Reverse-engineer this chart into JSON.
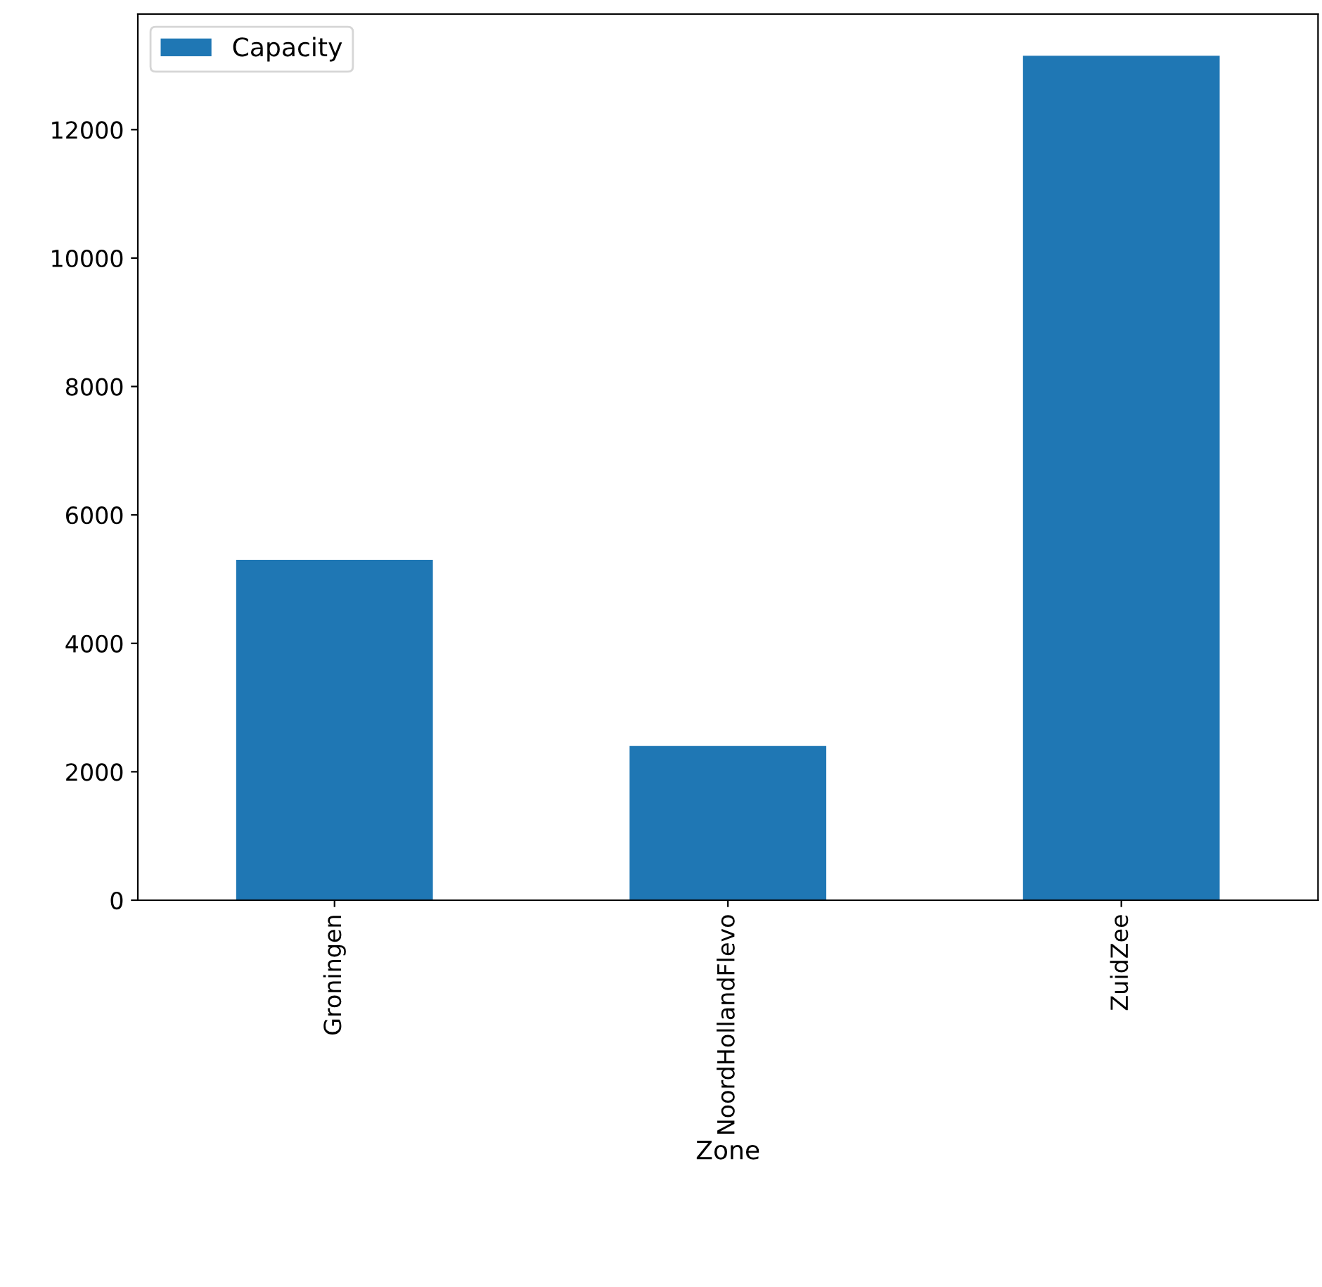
{
  "chart_data": {
    "type": "bar",
    "xlabel": "Zone",
    "categories": [
      "Groningen",
      "NoordHollandFlevo",
      "ZuidZee"
    ],
    "series": [
      {
        "name": "Capacity",
        "color": "#1f77b4",
        "values": [
          5300,
          2400,
          13150
        ]
      }
    ],
    "ylim": [
      0,
      13800
    ],
    "yticks": [
      0,
      2000,
      4000,
      6000,
      8000,
      10000,
      12000
    ],
    "legend": "top left",
    "grid": false
  }
}
